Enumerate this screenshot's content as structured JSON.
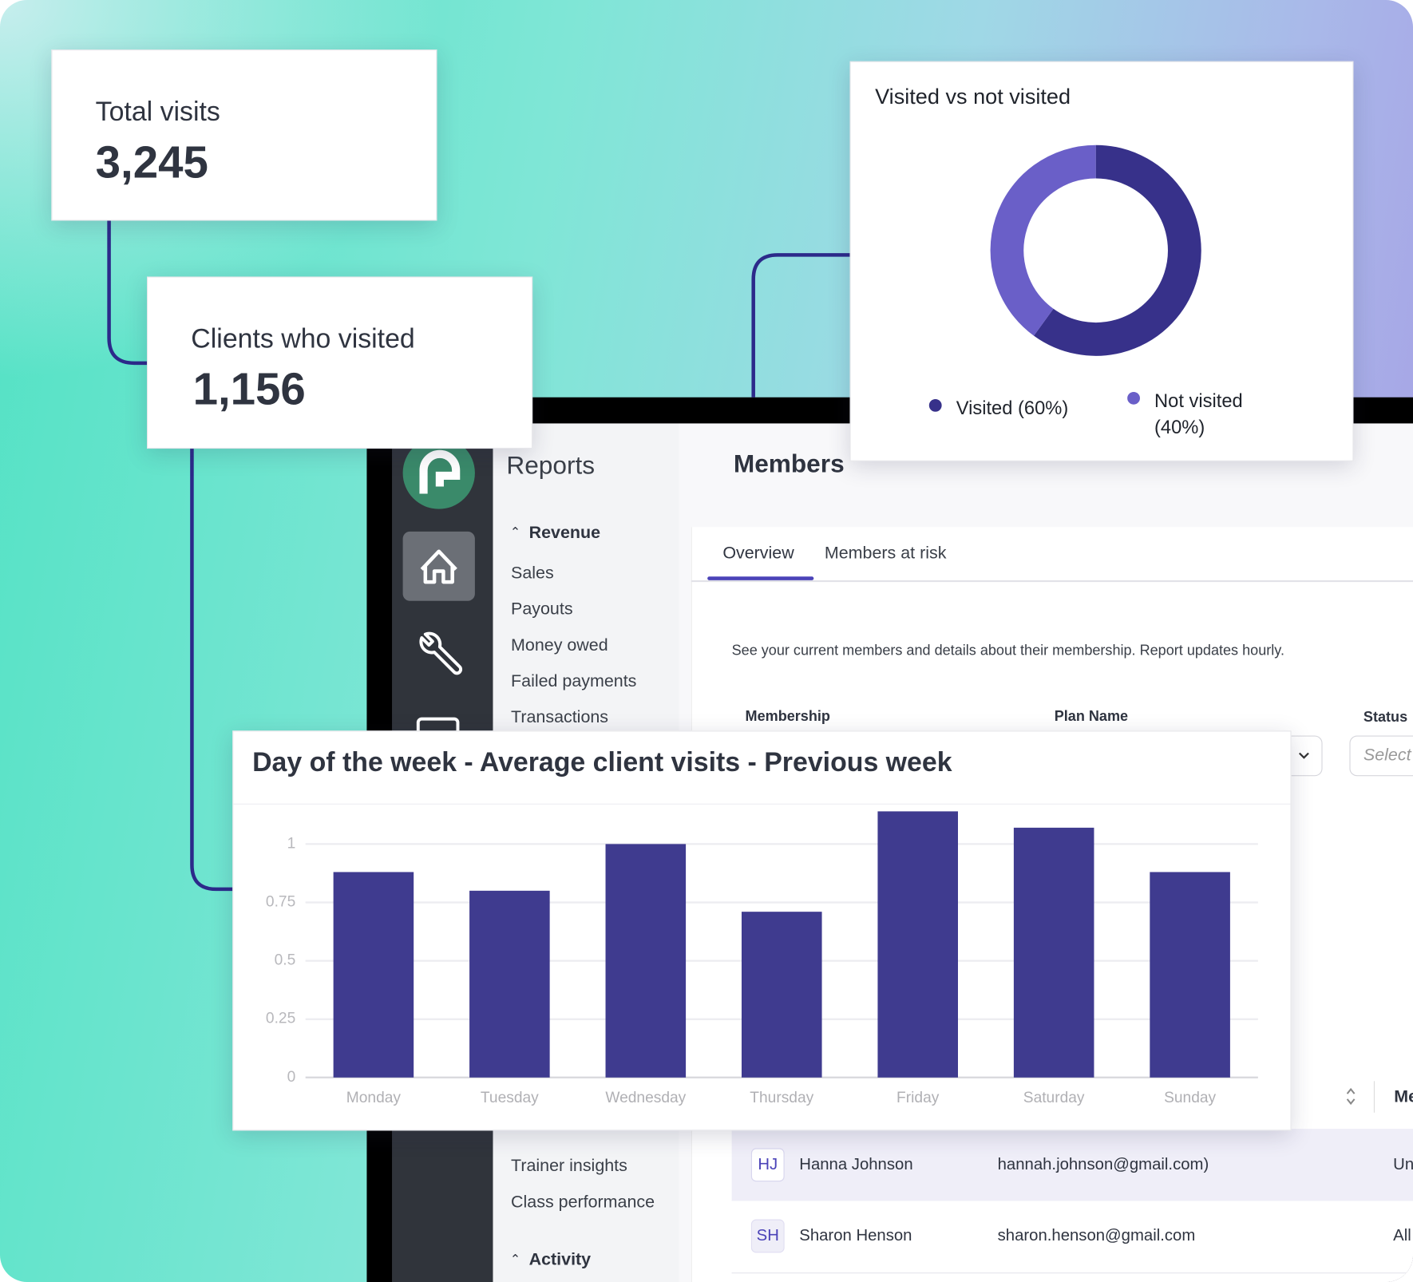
{
  "ui": {
    "stats": [
      {
        "label": "Total visits",
        "value": "3,245"
      },
      {
        "label": "Clients who visited",
        "value": "1,156"
      }
    ],
    "nav": {
      "title": "Reports",
      "revenue": "Revenue",
      "revenue_items": [
        "Sales",
        "Payouts",
        "Money owed",
        "Failed payments",
        "Transactions"
      ],
      "performance_items": [
        "Trainer insights",
        "Class performance"
      ],
      "activity": "Activity"
    },
    "main": {
      "title": "Members",
      "tabs": [
        "Overview",
        "Members at risk"
      ],
      "description": "See your current members and details about their membership. Report updates hourly.",
      "filters": [
        "Membership",
        "Plan Name",
        "Status"
      ],
      "select_placeholder": "Select",
      "column": "Me",
      "rows": [
        [
          "HJ",
          "Hanna Johnson",
          "hannah.johnson@gmail.com)",
          "Un"
        ],
        [
          "SH",
          "Sharon Henson",
          "sharon.henson@gmail.com",
          "All"
        ]
      ]
    }
  },
  "chart_data": [
    {
      "type": "bar",
      "title": "Day of the week - Average client visits - Previous week",
      "categories": [
        "Monday",
        "Tuesday",
        "Wednesday",
        "Thursday",
        "Friday",
        "Saturday",
        "Sunday"
      ],
      "values": [
        0.88,
        0.8,
        1.0,
        0.71,
        1.14,
        1.07,
        0.88
      ],
      "color": "#3f3b8f",
      "ylim": [
        0,
        1.15
      ],
      "yticks": [
        0,
        0.25,
        0.5,
        0.75,
        1
      ],
      "grid": true
    },
    {
      "type": "donut",
      "title": "Visited vs not visited",
      "categories": [
        "Visited (60%)",
        "Not visited (40%)"
      ],
      "values": [
        60,
        40
      ],
      "colors": [
        "#37318a",
        "#6a5fc8"
      ]
    }
  ]
}
